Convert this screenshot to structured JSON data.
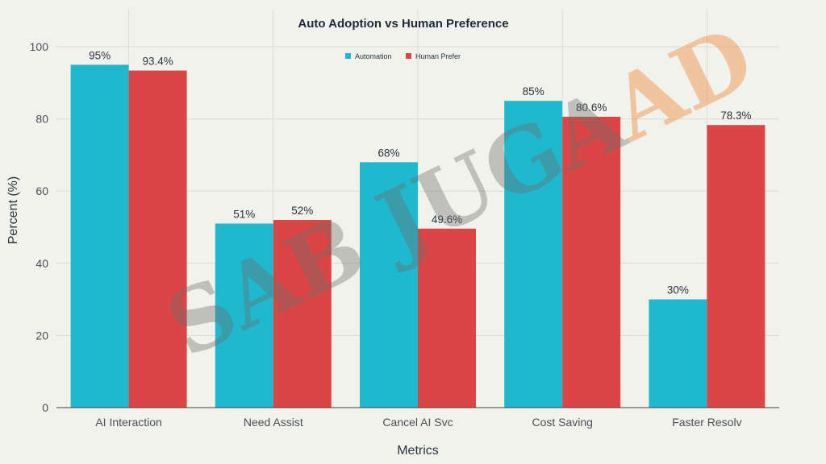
{
  "chart_data": {
    "type": "bar",
    "title": "Auto Adoption vs Human Preference",
    "xlabel": "Metrics",
    "ylabel": "Percent (%)",
    "ylim": [
      0,
      100
    ],
    "yticks": [
      0,
      20,
      40,
      60,
      80,
      100
    ],
    "grid": true,
    "legend_position": "top-center",
    "categories": [
      "AI Interaction",
      "Need Assist",
      "Cancel AI Svc",
      "Cost Saving",
      "Faster Resolv"
    ],
    "series": [
      {
        "name": "Automation",
        "color": "#1fb8cd",
        "values": [
          95,
          51,
          68,
          85,
          30
        ],
        "labels": [
          "95%",
          "51%",
          "68%",
          "85%",
          "30%"
        ]
      },
      {
        "name": "Human Prefer",
        "color": "#db4545",
        "values": [
          93.4,
          52,
          49.6,
          80.6,
          78.3
        ],
        "labels": [
          "93.4%",
          "52%",
          "49.6%",
          "80.6%",
          "78.3%"
        ]
      }
    ]
  },
  "watermark": {
    "text_left": "SAB JUGA",
    "text_right": "AD"
  }
}
